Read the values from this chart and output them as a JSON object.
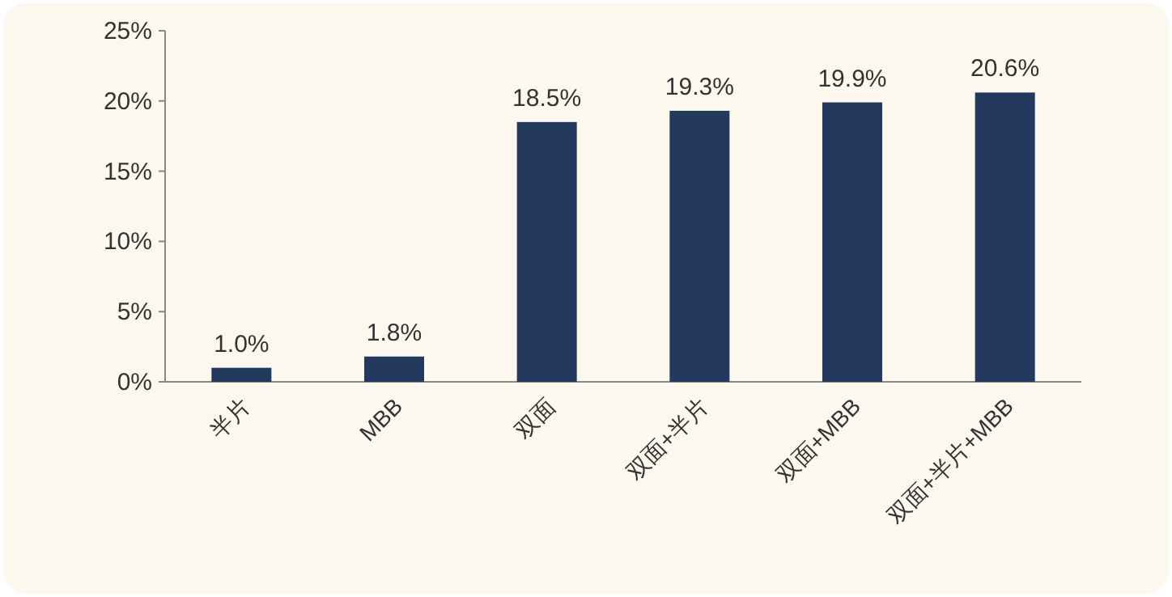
{
  "chart_data": {
    "type": "bar",
    "categories": [
      "半片",
      "MBB",
      "双面",
      "双面+半片",
      "双面+MBB",
      "双面+半片+MBB"
    ],
    "values": [
      1.0,
      1.8,
      18.5,
      19.3,
      19.9,
      20.6
    ],
    "value_labels": [
      "1.0%",
      "1.8%",
      "18.5%",
      "19.3%",
      "19.9%",
      "20.6%"
    ],
    "color": "#233a5e",
    "ylim": [
      0,
      25
    ],
    "yticks": [
      {
        "value": 0,
        "label": "0%"
      },
      {
        "value": 5,
        "label": "5%"
      },
      {
        "value": 10,
        "label": "10%"
      },
      {
        "value": 15,
        "label": "15%"
      },
      {
        "value": 20,
        "label": "20%"
      },
      {
        "value": 25,
        "label": "25%"
      }
    ],
    "grid": false
  }
}
